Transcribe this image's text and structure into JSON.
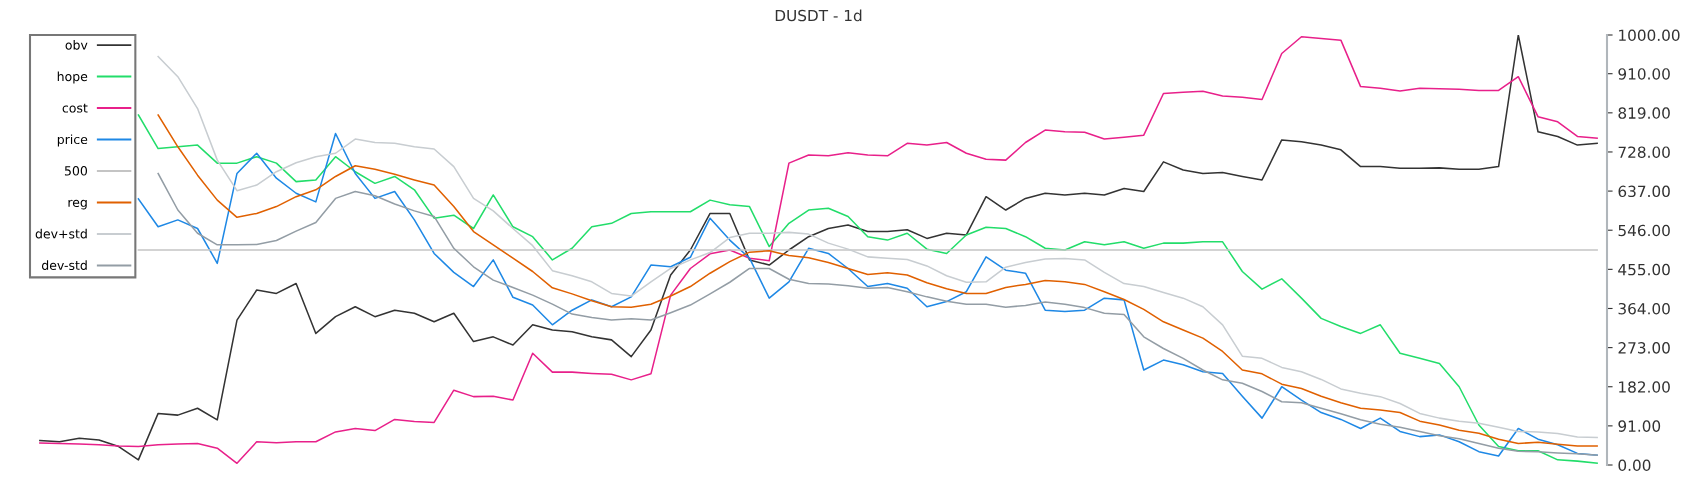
{
  "chart_data": {
    "type": "line",
    "title": "DUSDT - 1d",
    "categories": [
      null,
      null,
      null,
      null,
      null,
      null,
      null,
      null,
      null,
      null,
      null,
      null,
      null,
      null,
      null,
      null,
      null,
      null,
      null,
      null,
      null,
      null,
      null,
      null,
      null,
      null,
      null,
      null,
      null,
      null,
      null,
      null,
      null,
      null,
      null,
      null,
      null,
      null,
      null,
      null,
      null,
      null,
      null,
      null,
      null,
      null,
      null,
      null,
      null,
      null,
      null,
      null,
      null,
      null,
      null,
      null,
      null,
      null,
      null,
      null,
      null,
      null,
      null,
      null,
      null,
      null,
      null,
      null,
      null,
      null,
      null,
      null,
      null,
      null,
      null,
      null,
      null,
      null,
      null,
      null
    ],
    "ylim": [
      0,
      1000
    ],
    "yticks": [
      {
        "value": 0,
        "label": "0.00"
      },
      {
        "value": 91,
        "label": "91.00"
      },
      {
        "value": 182,
        "label": "182.00"
      },
      {
        "value": 273,
        "label": "273.00"
      },
      {
        "value": 364,
        "label": "364.00"
      },
      {
        "value": 455,
        "label": "455.00"
      },
      {
        "value": 546,
        "label": "546.00"
      },
      {
        "value": 637,
        "label": "637.00"
      },
      {
        "value": 728,
        "label": "728.00"
      },
      {
        "value": 819,
        "label": "819.00"
      },
      {
        "value": 910,
        "label": "910.00"
      },
      {
        "value": 1000,
        "label": "1000.00"
      }
    ],
    "tick_labels": "y",
    "grid": false,
    "legend": "top left",
    "marker": "none",
    "line_style": "solid",
    "series": [
      {
        "name": "obv",
        "color": "#333333",
        "values": [
          57,
          54,
          62,
          58,
          43,
          12,
          120,
          116,
          132,
          105,
          337,
          407,
          399,
          422,
          306,
          345,
          368,
          345,
          360,
          353,
          333,
          353,
          287,
          298,
          279,
          326,
          314,
          310,
          298,
          291,
          252,
          314,
          442,
          500,
          585,
          585,
          477,
          465,
          500,
          531,
          550,
          558,
          543,
          543,
          547,
          527,
          539,
          535,
          624,
          593,
          620,
          632,
          628,
          632,
          628,
          643,
          636,
          705,
          686,
          678,
          680,
          671,
          663,
          756,
          752,
          744,
          733,
          694,
          694,
          690,
          690,
          691,
          688,
          688,
          694,
          1000,
          775,
          764,
          744,
          748
        ]
      },
      {
        "name": "hope",
        "color": "#22dd6a",
        "values": [
          null,
          null,
          null,
          null,
          null,
          814,
          736,
          740,
          744,
          702,
          702,
          717,
          702,
          659,
          663,
          717,
          682,
          655,
          671,
          640,
          574,
          581,
          550,
          628,
          554,
          531,
          477,
          504,
          554,
          562,
          585,
          589,
          589,
          589,
          616,
          605,
          601,
          508,
          562,
          593,
          597,
          578,
          531,
          523,
          539,
          502,
          492,
          535,
          553,
          550,
          531,
          504,
          500,
          519,
          512,
          519,
          504,
          516,
          516,
          519,
          519,
          450,
          409,
          433,
          388,
          341,
          322,
          306,
          326,
          260,
          248,
          236,
          182,
          93,
          43,
          33,
          33,
          12,
          9,
          4
        ]
      },
      {
        "name": "cost",
        "color": "#e8208a",
        "values": [
          51,
          50,
          49,
          47,
          44,
          43,
          47,
          49,
          50,
          39,
          4,
          54,
          52,
          54,
          54,
          77,
          85,
          80,
          106,
          101,
          99,
          174,
          159,
          160,
          151,
          260,
          216,
          216,
          213,
          211,
          198,
          212,
          395,
          457,
          491,
          500,
          481,
          475,
          702,
          721,
          719,
          726,
          721,
          719,
          748,
          744,
          750,
          725,
          711,
          709,
          750,
          779,
          775,
          774,
          758,
          762,
          767,
          864,
          867,
          869,
          858,
          855,
          850,
          957,
          996,
          992,
          988,
          880,
          876,
          870,
          876,
          875,
          874,
          871,
          871,
          903,
          810,
          798,
          764,
          760
        ]
      },
      {
        "name": "price",
        "color": "#1e88e5",
        "values": [
          null,
          null,
          null,
          null,
          null,
          619,
          554,
          570,
          550,
          469,
          678,
          725,
          667,
          632,
          612,
          771,
          678,
          620,
          636,
          570,
          492,
          448,
          415,
          477,
          390,
          372,
          326,
          360,
          384,
          368,
          391,
          465,
          461,
          483,
          574,
          523,
          481,
          388,
          426,
          504,
          492,
          457,
          415,
          422,
          411,
          368,
          380,
          403,
          484,
          453,
          446,
          360,
          357,
          360,
          388,
          384,
          221,
          244,
          233,
          217,
          213,
          160,
          109,
          182,
          151,
          122,
          106,
          85,
          109,
          78,
          66,
          70,
          54,
          31,
          21,
          85,
          60,
          47,
          27,
          23
        ]
      },
      {
        "name": "500",
        "color": "#c4c4c4",
        "values": [
          null,
          null,
          null,
          null,
          null,
          500,
          500,
          500,
          500,
          500,
          500,
          500,
          500,
          500,
          500,
          500,
          500,
          500,
          500,
          500,
          500,
          500,
          500,
          500,
          500,
          500,
          500,
          500,
          500,
          500,
          500,
          500,
          500,
          500,
          500,
          500,
          500,
          500,
          500,
          500,
          500,
          500,
          500,
          500,
          500,
          500,
          500,
          500,
          500,
          500,
          500,
          500,
          500,
          500,
          500,
          500,
          500,
          500,
          500,
          500,
          500,
          500,
          500,
          500,
          500,
          500,
          500,
          500,
          500,
          500,
          500,
          500,
          500,
          500,
          500,
          500,
          500,
          500,
          500,
          500
        ]
      },
      {
        "name": "reg",
        "color": "#e06000",
        "values": [
          null,
          null,
          null,
          null,
          null,
          null,
          814,
          740,
          674,
          616,
          576,
          585,
          601,
          624,
          640,
          671,
          696,
          688,
          676,
          663,
          651,
          601,
          543,
          512,
          481,
          450,
          412,
          398,
          382,
          368,
          367,
          374,
          393,
          415,
          446,
          473,
          495,
          498,
          487,
          482,
          471,
          457,
          443,
          447,
          442,
          424,
          410,
          399,
          399,
          413,
          420,
          429,
          426,
          420,
          403,
          385,
          362,
          333,
          314,
          295,
          264,
          221,
          212,
          188,
          178,
          160,
          145,
          132,
          128,
          122,
          102,
          93,
          81,
          74,
          60,
          50,
          53,
          48,
          44,
          44
        ]
      },
      {
        "name": "dev+std",
        "color": "#c8cdd1",
        "values": [
          null,
          null,
          null,
          null,
          null,
          null,
          950,
          903,
          829,
          709,
          638,
          651,
          682,
          703,
          717,
          725,
          758,
          750,
          748,
          740,
          735,
          694,
          620,
          591,
          550,
          510,
          452,
          440,
          426,
          399,
          393,
          426,
          457,
          477,
          494,
          529,
          539,
          539,
          541,
          537,
          516,
          502,
          484,
          481,
          478,
          463,
          440,
          425,
          426,
          460,
          471,
          479,
          480,
          477,
          448,
          422,
          415,
          401,
          388,
          368,
          326,
          253,
          248,
          227,
          217,
          199,
          177,
          167,
          159,
          143,
          120,
          109,
          102,
          97,
          88,
          78,
          77,
          73,
          65,
          64
        ]
      },
      {
        "name": "dev-std",
        "color": "#939da5",
        "values": [
          null,
          null,
          null,
          null,
          null,
          null,
          678,
          593,
          539,
          512,
          512,
          513,
          522,
          544,
          564,
          620,
          636,
          626,
          607,
          591,
          578,
          504,
          461,
          430,
          413,
          395,
          374,
          351,
          343,
          337,
          340,
          337,
          354,
          372,
          398,
          425,
          457,
          457,
          432,
          422,
          421,
          417,
          411,
          413,
          403,
          391,
          381,
          374,
          374,
          367,
          371,
          379,
          374,
          366,
          353,
          350,
          298,
          271,
          248,
          221,
          198,
          190,
          171,
          147,
          145,
          132,
          119,
          105,
          95,
          88,
          78,
          68,
          61,
          50,
          39,
          32,
          31,
          28,
          26,
          23
        ]
      }
    ]
  }
}
